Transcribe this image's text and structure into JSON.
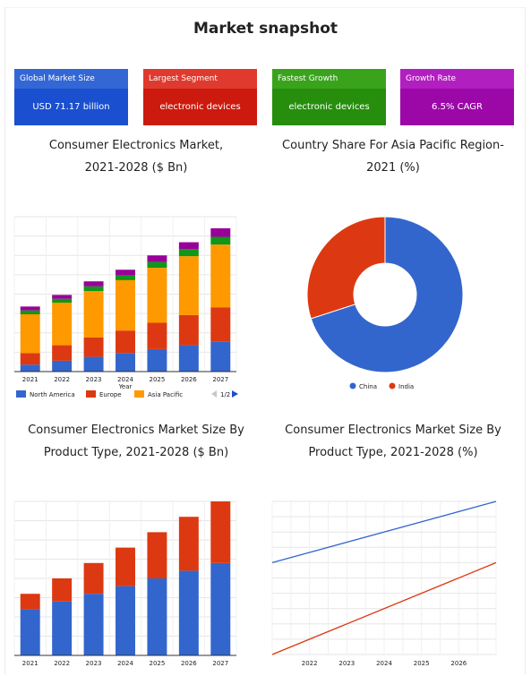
{
  "page": {
    "title": "Market snapshot"
  },
  "cards": [
    {
      "label": "Global Market Size",
      "value": "USD 71.17 billion",
      "header_color": "#3367d6",
      "body_color": "#1a4fd0"
    },
    {
      "label": "Largest Segment",
      "value": "electronic devices",
      "header_color": "#e03a2e",
      "body_color": "#cc1a0e"
    },
    {
      "label": "Fastest Growth",
      "value": "electronic devices",
      "header_color": "#3aa31c",
      "body_color": "#268e0c"
    },
    {
      "label": "Growth Rate",
      "value": "6.5% CAGR",
      "header_color": "#b21fc0",
      "body_color": "#9c08a8"
    }
  ],
  "chart_data": [
    {
      "type": "bar",
      "stacked": true,
      "title_line1": "Consumer Electronics Market,",
      "title_line2": "2021-2028 ($ Bn)",
      "categories": [
        "2021",
        "2022",
        "2023",
        "2024",
        "2025",
        "2026",
        "2027"
      ],
      "xlabel": "Year",
      "ylim": [
        0,
        40
      ],
      "grid": true,
      "series": [
        {
          "name": "North America",
          "color": "#3366cc",
          "values": [
            1.8,
            2.8,
            3.8,
            4.8,
            5.8,
            6.8,
            7.8
          ]
        },
        {
          "name": "Europe",
          "color": "#dc3912",
          "values": [
            3.0,
            4.0,
            5.0,
            5.8,
            6.8,
            7.8,
            8.8
          ]
        },
        {
          "name": "Asia Pacific",
          "color": "#ff9900",
          "values": [
            10.0,
            11.0,
            12.0,
            13.0,
            14.2,
            15.2,
            16.2
          ]
        },
        {
          "name": "",
          "color": "#109618",
          "values": [
            1.0,
            1.0,
            1.2,
            1.2,
            1.5,
            1.8,
            2.0
          ]
        },
        {
          "name": "",
          "color": "#990099",
          "values": [
            1.0,
            1.0,
            1.3,
            1.5,
            1.7,
            1.8,
            2.2
          ]
        }
      ],
      "legend_pager": "1/2",
      "legend_position": "bottom"
    },
    {
      "type": "pie",
      "donut": true,
      "title_line1": "Country Share For Asia Pacific Region-",
      "title_line2": "2021 (%)",
      "slices": [
        {
          "label": "China",
          "value": 70,
          "color": "#3366cc"
        },
        {
          "label": "India",
          "value": 30,
          "color": "#dc3912"
        }
      ],
      "legend_position": "bottom"
    },
    {
      "type": "bar",
      "stacked": true,
      "title_line1": "Consumer Electronics Market Size By",
      "title_line2": "Product Type, 2021-2028 ($ Bn)",
      "categories": [
        "2021",
        "2022",
        "2023",
        "2024",
        "2025",
        "2026",
        "2027"
      ],
      "ylim": [
        0,
        40
      ],
      "grid": true,
      "series": [
        {
          "name": "",
          "color": "#3366cc",
          "values": [
            12,
            14,
            16,
            18,
            20,
            22,
            24
          ]
        },
        {
          "name": "",
          "color": "#dc3912",
          "values": [
            4,
            6,
            8,
            10,
            12,
            14,
            16
          ]
        }
      ]
    },
    {
      "type": "line",
      "title_line1": "Consumer Electronics Market Size By",
      "title_line2": "Product Type, 2021-2028 (%)",
      "x_ticks": [
        "2022",
        "2023",
        "2024",
        "2025",
        "2026"
      ],
      "xlim": [
        2021,
        2027
      ],
      "ylim": [
        0,
        100
      ],
      "grid": true,
      "series": [
        {
          "name": "",
          "color": "#3366cc",
          "x": [
            2021,
            2027
          ],
          "y": [
            60,
            100
          ]
        },
        {
          "name": "",
          "color": "#dc3912",
          "x": [
            2021,
            2027
          ],
          "y": [
            0,
            60
          ]
        }
      ]
    }
  ]
}
